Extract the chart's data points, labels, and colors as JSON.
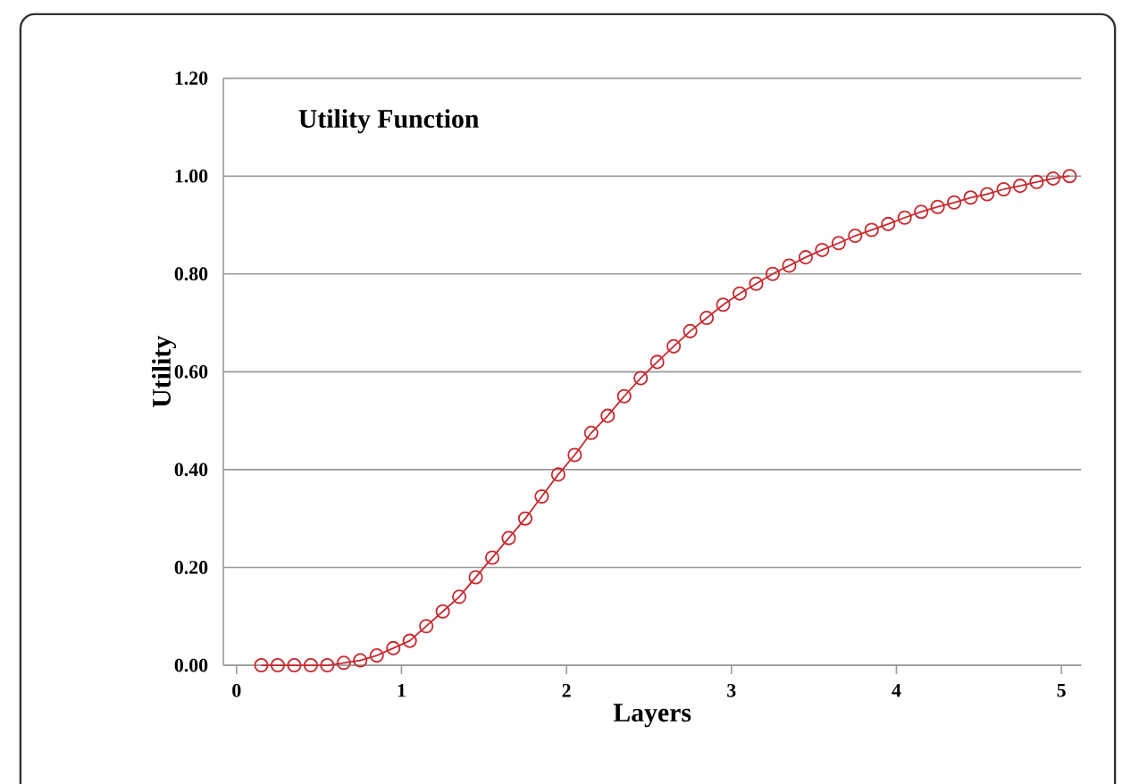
{
  "chart_data": {
    "type": "line",
    "title": "Utility Function",
    "xlabel": "Layers",
    "ylabel": "Utility",
    "x": [
      0.15,
      0.25,
      0.35,
      0.45,
      0.55,
      0.65,
      0.75,
      0.85,
      0.95,
      1.05,
      1.15,
      1.25,
      1.35,
      1.45,
      1.55,
      1.65,
      1.75,
      1.85,
      1.95,
      2.05,
      2.15,
      2.25,
      2.35,
      2.45,
      2.55,
      2.65,
      2.75,
      2.85,
      2.95,
      3.05,
      3.15,
      3.25,
      3.35,
      3.45,
      3.55,
      3.65,
      3.75,
      3.85,
      3.95,
      4.05,
      4.15,
      4.25,
      4.35,
      4.45,
      4.55,
      4.65,
      4.75,
      4.85,
      4.95,
      5.05
    ],
    "series": [
      {
        "color": "#c8282d",
        "values": [
          0,
          0,
          0,
          0,
          0,
          0.005,
          0.01,
          0.02,
          0.035,
          0.05,
          0.08,
          0.11,
          0.14,
          0.18,
          0.22,
          0.26,
          0.3,
          0.345,
          0.39,
          0.43,
          0.475,
          0.51,
          0.55,
          0.587,
          0.62,
          0.652,
          0.683,
          0.71,
          0.737,
          0.76,
          0.78,
          0.8,
          0.817,
          0.834,
          0.849,
          0.863,
          0.878,
          0.89,
          0.902,
          0.915,
          0.927,
          0.937,
          0.946,
          0.956,
          0.963,
          0.973,
          0.98,
          0.988,
          0.995,
          1.0
        ]
      }
    ],
    "xlim": [
      -0.08,
      5.12
    ],
    "ylim": [
      0,
      1.2
    ],
    "xticks": [
      0,
      1,
      2,
      3,
      4,
      5
    ],
    "yticks": [
      {
        "value": 0,
        "label": "0.00"
      },
      {
        "value": 0.2,
        "label": "0.20"
      },
      {
        "value": 0.4,
        "label": "0.40"
      },
      {
        "value": 0.6,
        "label": "0.60"
      },
      {
        "value": 0.8,
        "label": "0.80"
      },
      {
        "value": 1.0,
        "label": "1.00"
      },
      {
        "value": 1.2,
        "label": "1.20"
      }
    ],
    "grid": "y",
    "marker": "circle",
    "line_style": "solid"
  }
}
